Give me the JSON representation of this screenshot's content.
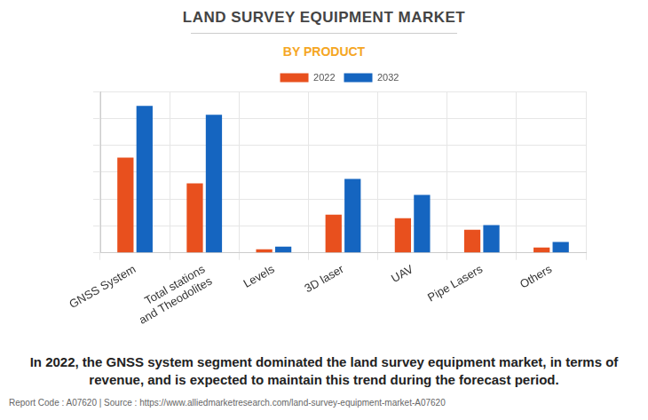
{
  "chart_data": {
    "type": "bar",
    "title": "LAND SURVEY EQUIPMENT MARKET",
    "subtitle": "BY PRODUCT",
    "categories": [
      "GNSS System",
      "Total stations and Theodolites",
      "Levels",
      "3D laser",
      "UAV",
      "Pipe Lasers",
      "Others"
    ],
    "series": [
      {
        "name": "2022",
        "color": "#e8501e",
        "values": [
          3.54,
          2.58,
          0.13,
          1.42,
          1.29,
          0.86,
          0.2
        ]
      },
      {
        "name": "2032",
        "color": "#1565c0",
        "values": [
          5.46,
          5.13,
          0.23,
          2.75,
          2.15,
          1.03,
          0.4
        ]
      }
    ],
    "ylim": [
      0,
      6
    ],
    "yticks": [
      0,
      1,
      2,
      3,
      4,
      5,
      6
    ],
    "grid": true,
    "legend": "top",
    "tick_labels": "x",
    "annotations": [
      "In 2022, the GNSS system segment dominated the land survey equipment market, in terms of revenue, and is expected to maintain this trend during the forecast period.",
      "Report Code : A07620  |  Source : https://www.alliedmarketresearch.com/land-survey-equipment-market-A07620"
    ]
  }
}
